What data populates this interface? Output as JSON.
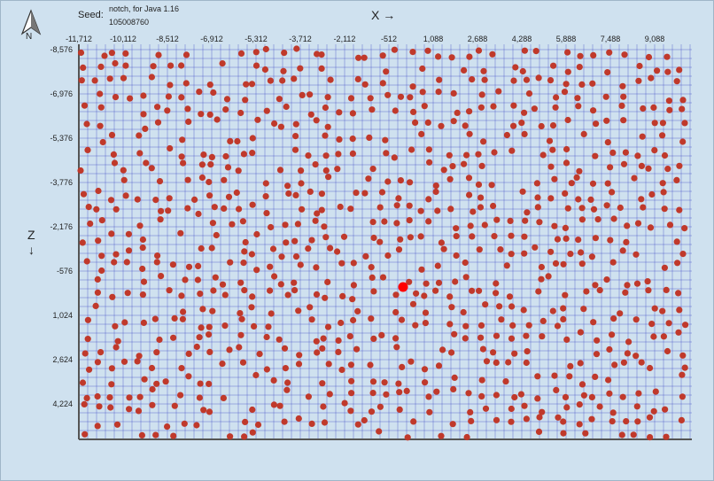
{
  "header": {
    "seed_label": "Seed:",
    "seed_edition": "notch, for Java 1.16",
    "seed_value": "105008760",
    "north_label": "N",
    "x_axis_title": "X →",
    "z_axis_title": "Z",
    "z_arrow": "↓"
  },
  "colors": {
    "background": "#cfe1ef",
    "grid": "#3b46c4",
    "structure": "#c0392b",
    "highlight": "#ff0000",
    "axis": "#555555"
  },
  "map": {
    "x_ticks": [
      "-11,712",
      "-10,112",
      "-8,512",
      "-6,912",
      "-5,312",
      "-3,712",
      "-2,112",
      "-512",
      "1,088",
      "2,688",
      "4,288",
      "5,888",
      "7,488",
      "9,088"
    ],
    "z_ticks": [
      "-8,576",
      "-6,976",
      "-5,376",
      "-3,776",
      "-2,176",
      "-576",
      "1,024",
      "2,624",
      "4,224"
    ],
    "x_range": [
      -11712,
      10200
    ],
    "z_range": [
      -8576,
      5300
    ],
    "grid_step_blocks": 320,
    "highlighted_marker": {
      "x": 0,
      "z": 0
    }
  }
}
